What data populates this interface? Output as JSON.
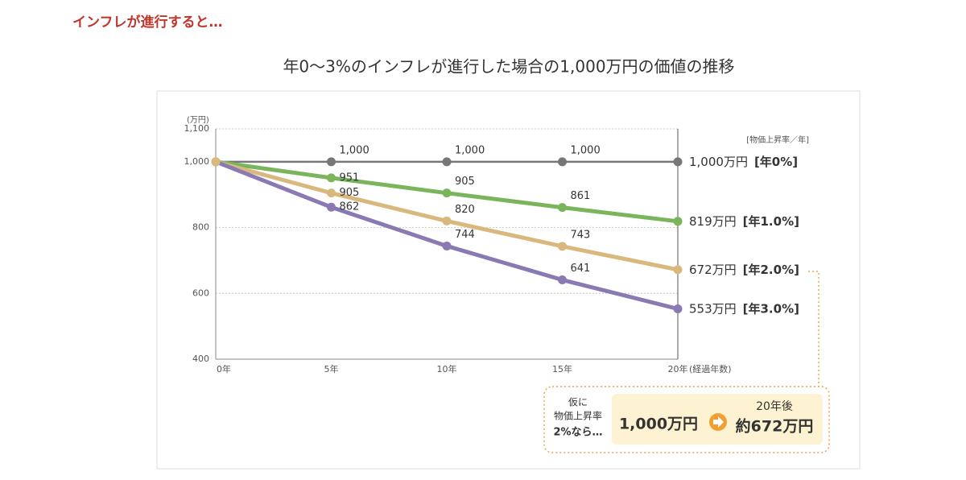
{
  "heading": "インフレが進行すると…",
  "chart_data": {
    "type": "line",
    "title": "年0〜3%のインフレが進行した場合の1,000万円の価値の推移",
    "y_unit": "(万円)",
    "x_label": "(経過年数)",
    "legend_title": "[物価上昇率／年]",
    "categories": [
      "0年",
      "5年",
      "10年",
      "15年",
      "20年"
    ],
    "ylim": [
      400,
      1100
    ],
    "yticks": [
      400,
      600,
      800,
      {
        "value": 1000,
        "label": "1,000"
      },
      {
        "value": 1100,
        "label": "1,100"
      }
    ],
    "grid": true,
    "series": [
      {
        "name": "[年0%]",
        "color": "#777777",
        "values": [
          1000,
          1000,
          1000,
          1000,
          1000
        ],
        "value_labels": [
          null,
          "1,000",
          "1,000",
          "1,000",
          "1,000万円"
        ]
      },
      {
        "name": "[年1.0%]",
        "color": "#7ab55c",
        "values": [
          1000,
          951,
          905,
          861,
          819
        ],
        "value_labels": [
          null,
          "951",
          "905",
          "861",
          "819万円"
        ]
      },
      {
        "name": "[年2.0%]",
        "color": "#d8b87c",
        "values": [
          1000,
          905,
          820,
          743,
          672
        ],
        "value_labels": [
          null,
          "905",
          "820",
          "743",
          "672万円"
        ]
      },
      {
        "name": "[年3.0%]",
        "color": "#8a79b2",
        "values": [
          1000,
          862,
          744,
          641,
          553
        ],
        "value_labels": [
          null,
          "862",
          "744",
          "641",
          "553万円"
        ]
      }
    ]
  },
  "callout": {
    "condition": [
      "仮に",
      "物価上昇率",
      "2%なら…"
    ],
    "from": "1,000万円",
    "after": "20年後",
    "to": "約672万円"
  }
}
